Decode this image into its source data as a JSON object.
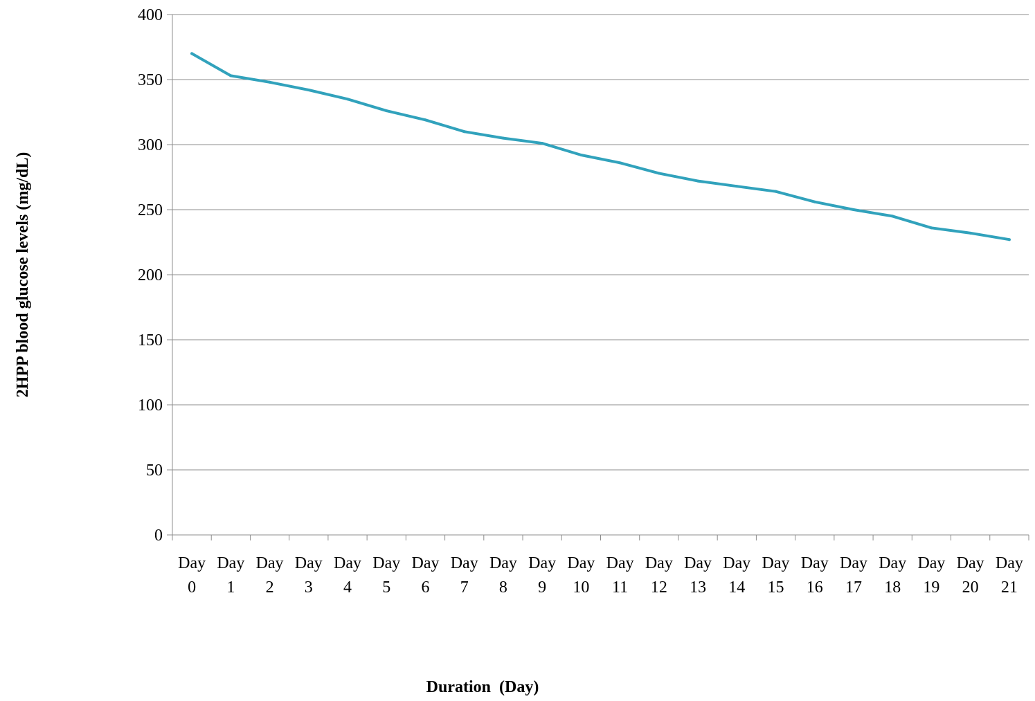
{
  "chart_data": {
    "type": "line",
    "title": "",
    "xlabel": "Duration  (Day)",
    "ylabel": "2HPP blood glucose levels (mg/dL)",
    "ylim": [
      0,
      400
    ],
    "yticks": [
      0,
      50,
      100,
      150,
      200,
      250,
      300,
      350,
      400
    ],
    "grid": true,
    "legend": "none",
    "line_color": "#31a2bc",
    "categories": [
      [
        "Day",
        "0"
      ],
      [
        "Day",
        "1"
      ],
      [
        "Day",
        "2"
      ],
      [
        "Day",
        "3"
      ],
      [
        "Day",
        "4"
      ],
      [
        "Day",
        "5"
      ],
      [
        "Day",
        "6"
      ],
      [
        "Day",
        "7"
      ],
      [
        "Day",
        "8"
      ],
      [
        "Day",
        "9"
      ],
      [
        "Day",
        "10"
      ],
      [
        "Day",
        "11"
      ],
      [
        "Day",
        "12"
      ],
      [
        "Day",
        "13"
      ],
      [
        "Day",
        "14"
      ],
      [
        "Day",
        "15"
      ],
      [
        "Day",
        "16"
      ],
      [
        "Day",
        "17"
      ],
      [
        "Day",
        "18"
      ],
      [
        "Day",
        "19"
      ],
      [
        "Day",
        "20"
      ],
      [
        "Day",
        "21"
      ]
    ],
    "series": [
      {
        "values": [
          370,
          353,
          348,
          342,
          335,
          326,
          319,
          310,
          305,
          301,
          292,
          286,
          278,
          272,
          268,
          264,
          256,
          250,
          245,
          236,
          232,
          227
        ]
      }
    ]
  }
}
